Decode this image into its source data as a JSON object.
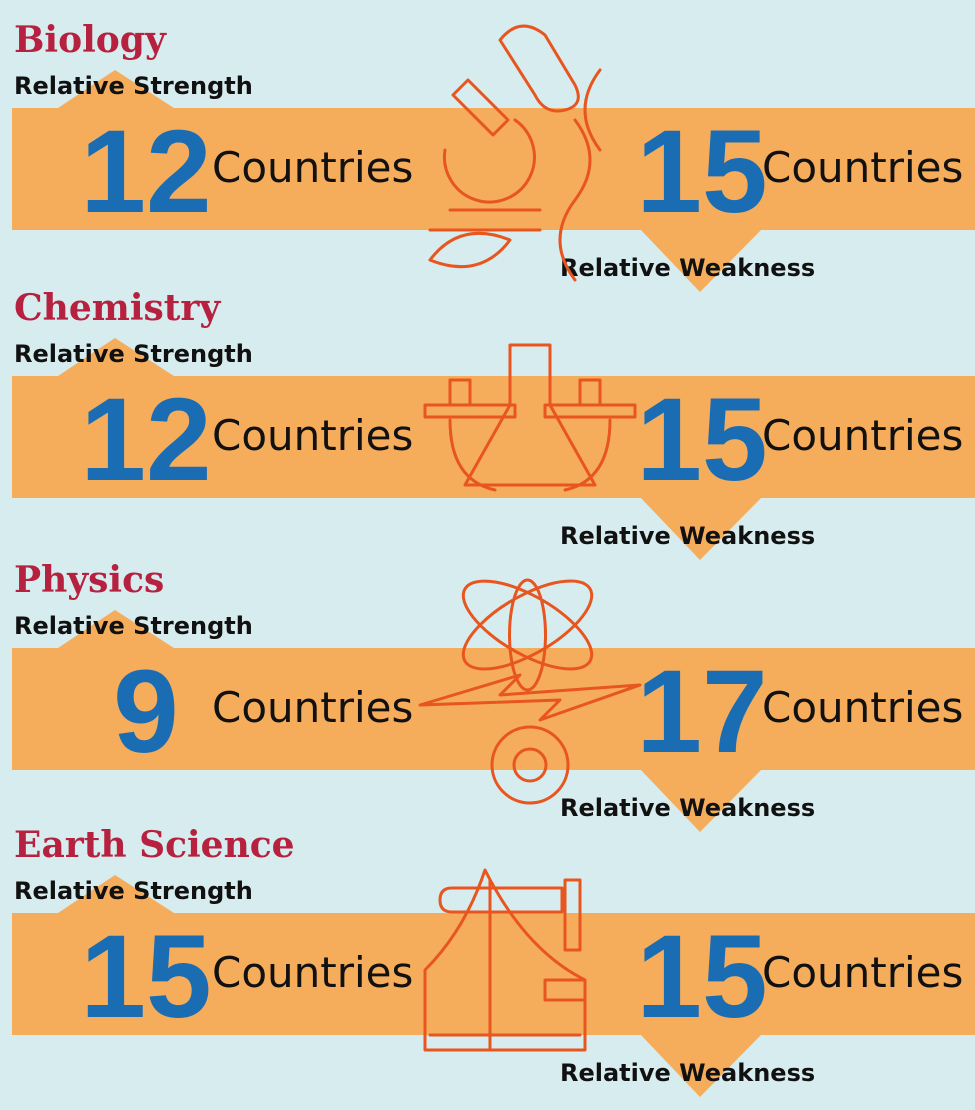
{
  "sections": [
    {
      "title": "Biology",
      "strength_label": "Relative Strength",
      "strength_count": "12",
      "strength_unit": "Countries",
      "weakness_count": "15",
      "weakness_unit": "Countries",
      "weakness_label": "Relative Weakness"
    },
    {
      "title": "Chemistry",
      "strength_label": "Relative Strength",
      "strength_count": "12",
      "strength_unit": "Countries",
      "weakness_count": "15",
      "weakness_unit": "Countries",
      "weakness_label": "Relative Weakness"
    },
    {
      "title": "Physics",
      "strength_label": "Relative Strength",
      "strength_count": "9",
      "strength_unit": "Countries",
      "weakness_count": "17",
      "weakness_unit": "Countries",
      "weakness_label": "Relative Weakness"
    },
    {
      "title": "Earth Science",
      "strength_label": "Relative Strength",
      "strength_count": "15",
      "strength_unit": "Countries",
      "weakness_count": "15",
      "weakness_unit": "Countries",
      "weakness_label": "Relative Weakness"
    }
  ]
}
